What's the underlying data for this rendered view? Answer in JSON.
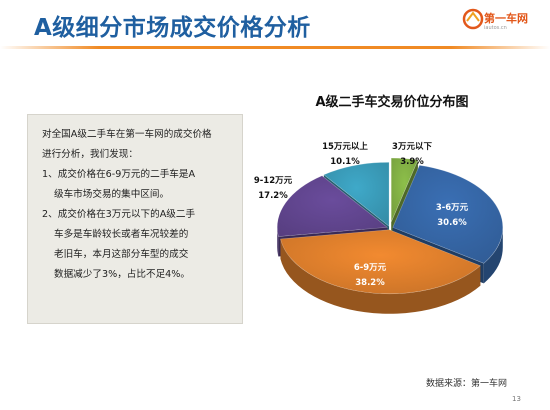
{
  "slide": {
    "title": "A级细分市场成交价格分析",
    "logo_text": "第一车网",
    "logo_subtext": "iautos.cn",
    "page_number": "13",
    "source": "数据来源：第一车网"
  },
  "textbox": {
    "lines": [
      "对全国A级二手车在第一车网的成交价格",
      "进行分析，我们发现：",
      "1、成交价格在6-9万元的二手车是A",
      "级车市场交易的集中区间。",
      "2、成交价格在3万元以下的A级二手",
      "车多是车龄较长或者车况较差的",
      "老旧车，本月这部分车型的成交",
      "数据减少了3%，占比不足4%。"
    ]
  },
  "chart_data": {
    "type": "pie",
    "title": "A级二手车交易价位分布图",
    "three_d": true,
    "slices": [
      {
        "label": "3万元以下",
        "value": 3.9,
        "value_label": "3.9%",
        "color": "#8dbf4a"
      },
      {
        "label": "3-6万元",
        "value": 30.6,
        "value_label": "30.6%",
        "color": "#3a6fb4"
      },
      {
        "label": "6-9万元",
        "value": 38.2,
        "value_label": "38.2%",
        "color": "#f28a30"
      },
      {
        "label": "9-12万元",
        "value": 17.2,
        "value_label": "17.2%",
        "color": "#6a4c9c"
      },
      {
        "label": "15万元以上",
        "value": 10.1,
        "value_label": "10.1%",
        "color": "#3fa9c9"
      }
    ]
  }
}
